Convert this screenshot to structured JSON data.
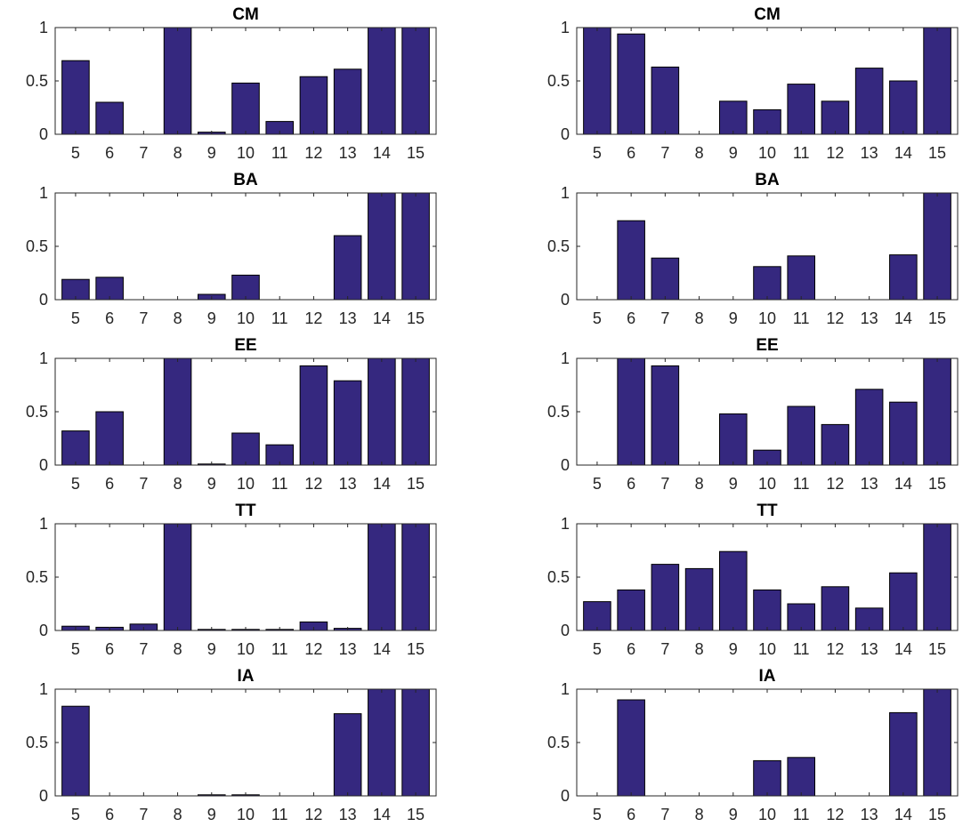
{
  "colors": {
    "bar_fill": "#35287F",
    "bar_edge": "#000000",
    "axis": "#262626",
    "background": "#FFFFFF"
  },
  "chart_data": [
    {
      "type": "bar",
      "column": "left",
      "title": "CM",
      "categories": [
        "5",
        "6",
        "7",
        "8",
        "9",
        "10",
        "11",
        "12",
        "13",
        "14",
        "15"
      ],
      "values": [
        0.69,
        0.3,
        0,
        1.0,
        0.02,
        0.48,
        0.12,
        0.54,
        0.61,
        1.0,
        1.0
      ],
      "ylim": [
        0,
        1
      ],
      "yticks": [
        0,
        0.5,
        1
      ],
      "ytick_labels": [
        "0",
        "0.5",
        "1"
      ]
    },
    {
      "type": "bar",
      "column": "right",
      "title": "CM",
      "categories": [
        "5",
        "6",
        "7",
        "8",
        "9",
        "10",
        "11",
        "12",
        "13",
        "14",
        "15"
      ],
      "values": [
        1.0,
        0.94,
        0.63,
        0,
        0.31,
        0.23,
        0.47,
        0.31,
        0.62,
        0.5,
        1.0
      ],
      "ylim": [
        0,
        1
      ],
      "yticks": [
        0,
        0.5,
        1
      ],
      "ytick_labels": [
        "0",
        "0.5",
        "1"
      ]
    },
    {
      "type": "bar",
      "column": "left",
      "title": "BA",
      "categories": [
        "5",
        "6",
        "7",
        "8",
        "9",
        "10",
        "11",
        "12",
        "13",
        "14",
        "15"
      ],
      "values": [
        0.19,
        0.21,
        0,
        0,
        0.05,
        0.23,
        0,
        0,
        0.6,
        1.0,
        1.0
      ],
      "ylim": [
        0,
        1
      ],
      "yticks": [
        0,
        0.5,
        1
      ],
      "ytick_labels": [
        "0",
        "0.5",
        "1"
      ]
    },
    {
      "type": "bar",
      "column": "right",
      "title": "BA",
      "categories": [
        "5",
        "6",
        "7",
        "8",
        "9",
        "10",
        "11",
        "12",
        "13",
        "14",
        "15"
      ],
      "values": [
        0,
        0.74,
        0.39,
        0,
        0,
        0.31,
        0.41,
        0,
        0,
        0.42,
        1.0
      ],
      "ylim": [
        0,
        1
      ],
      "yticks": [
        0,
        0.5,
        1
      ],
      "ytick_labels": [
        "0",
        "0.5",
        "1"
      ]
    },
    {
      "type": "bar",
      "column": "left",
      "title": "EE",
      "categories": [
        "5",
        "6",
        "7",
        "8",
        "9",
        "10",
        "11",
        "12",
        "13",
        "14",
        "15"
      ],
      "values": [
        0.32,
        0.5,
        0,
        1.0,
        0.01,
        0.3,
        0.19,
        0.93,
        0.79,
        1.0,
        1.0
      ],
      "ylim": [
        0,
        1
      ],
      "yticks": [
        0,
        0.5,
        1
      ],
      "ytick_labels": [
        "0",
        "0.5",
        "1"
      ]
    },
    {
      "type": "bar",
      "column": "right",
      "title": "EE",
      "categories": [
        "5",
        "6",
        "7",
        "8",
        "9",
        "10",
        "11",
        "12",
        "13",
        "14",
        "15"
      ],
      "values": [
        0,
        1.0,
        0.93,
        0,
        0.48,
        0.14,
        0.55,
        0.38,
        0.71,
        0.59,
        1.0
      ],
      "ylim": [
        0,
        1
      ],
      "yticks": [
        0,
        0.5,
        1
      ],
      "ytick_labels": [
        "0",
        "0.5",
        "1"
      ]
    },
    {
      "type": "bar",
      "column": "left",
      "title": "TT",
      "categories": [
        "5",
        "6",
        "7",
        "8",
        "9",
        "10",
        "11",
        "12",
        "13",
        "14",
        "15"
      ],
      "values": [
        0.04,
        0.03,
        0.06,
        1.0,
        0.01,
        0.01,
        0.01,
        0.08,
        0.02,
        1.0,
        1.0
      ],
      "ylim": [
        0,
        1
      ],
      "yticks": [
        0,
        0.5,
        1
      ],
      "ytick_labels": [
        "0",
        "0.5",
        "1"
      ]
    },
    {
      "type": "bar",
      "column": "right",
      "title": "TT",
      "categories": [
        "5",
        "6",
        "7",
        "8",
        "9",
        "10",
        "11",
        "12",
        "13",
        "14",
        "15"
      ],
      "values": [
        0.27,
        0.38,
        0.62,
        0.58,
        0.74,
        0.38,
        0.25,
        0.41,
        0.21,
        0.54,
        1.0
      ],
      "ylim": [
        0,
        1
      ],
      "yticks": [
        0,
        0.5,
        1
      ],
      "ytick_labels": [
        "0",
        "0.5",
        "1"
      ]
    },
    {
      "type": "bar",
      "column": "left",
      "title": "IA",
      "categories": [
        "5",
        "6",
        "7",
        "8",
        "9",
        "10",
        "11",
        "12",
        "13",
        "14",
        "15"
      ],
      "values": [
        0.84,
        0,
        0,
        0,
        0.01,
        0.01,
        0,
        0,
        0.77,
        1.0,
        1.0
      ],
      "ylim": [
        0,
        1
      ],
      "yticks": [
        0,
        0.5,
        1
      ],
      "ytick_labels": [
        "0",
        "0.5",
        "1"
      ]
    },
    {
      "type": "bar",
      "column": "right",
      "title": "IA",
      "categories": [
        "5",
        "6",
        "7",
        "8",
        "9",
        "10",
        "11",
        "12",
        "13",
        "14",
        "15"
      ],
      "values": [
        0,
        0.9,
        0,
        0,
        0,
        0.33,
        0.36,
        0,
        0,
        0.78,
        1.0
      ],
      "ylim": [
        0,
        1
      ],
      "yticks": [
        0,
        0.5,
        1
      ],
      "ytick_labels": [
        "0",
        "0.5",
        "1"
      ]
    }
  ]
}
